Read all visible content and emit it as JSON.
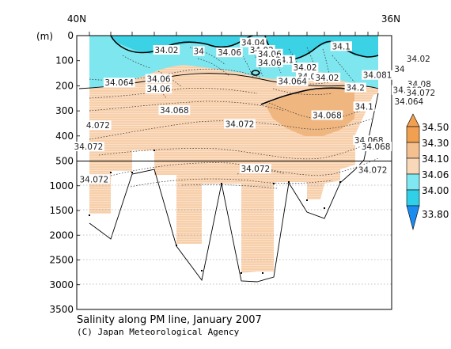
{
  "chart_data": {
    "type": "contour",
    "title": "Salinity along PM line, January 2007",
    "credit": "(C) Japan Meteorological Agency",
    "x_axis": {
      "labels": [
        "40N",
        "36N"
      ],
      "range": [
        40,
        36
      ]
    },
    "y_axis": {
      "unit": "(m)",
      "upper_ticks": [
        0,
        100,
        200,
        300,
        400,
        500
      ],
      "lower_ticks": [
        500,
        1000,
        1500,
        2000,
        2500,
        3000,
        3500
      ],
      "break_depth": 500,
      "range": [
        0,
        3500
      ]
    },
    "colorbar": {
      "levels": [
        "34.50",
        "34.30",
        "34.10",
        "34.06",
        "34.00",
        "33.80"
      ],
      "colors": [
        "#f0a050",
        "#f4c090",
        "#f8d8b8",
        "#80e8f0",
        "#30d0e8",
        "#1c8cf0"
      ]
    },
    "contour_labels": [
      {
        "text": "34.02",
        "lat": 38.86,
        "depth": 60
      },
      {
        "text": "34",
        "lat": 38.45,
        "depth": 65
      },
      {
        "text": "34.06",
        "lat": 38.06,
        "depth": 70
      },
      {
        "text": "34.04",
        "lat": 37.76,
        "depth": 30
      },
      {
        "text": "34.02",
        "lat": 37.65,
        "depth": 60
      },
      {
        "text": "34.06",
        "lat": 37.55,
        "depth": 75
      },
      {
        "text": "34.1",
        "lat": 37.36,
        "depth": 100
      },
      {
        "text": "34.06",
        "lat": 37.55,
        "depth": 110
      },
      {
        "text": "34.02",
        "lat": 37.1,
        "depth": 130
      },
      {
        "text": "34.0",
        "lat": 37.08,
        "depth": 165
      },
      {
        "text": "34.02",
        "lat": 36.82,
        "depth": 170
      },
      {
        "text": "34.1",
        "lat": 36.64,
        "depth": 45
      },
      {
        "text": "34.064",
        "lat": 39.46,
        "depth": 190
      },
      {
        "text": "34.06",
        "lat": 38.96,
        "depth": 175
      },
      {
        "text": "34.06",
        "lat": 38.96,
        "depth": 215
      },
      {
        "text": "34.064",
        "lat": 37.26,
        "depth": 185
      },
      {
        "text": "34.081",
        "lat": 36.18,
        "depth": 160
      },
      {
        "text": "34",
        "lat": 35.9,
        "depth": 135
      },
      {
        "text": "34.02",
        "lat": 35.66,
        "depth": 95
      },
      {
        "text": "34.2",
        "lat": 36.46,
        "depth": 210
      },
      {
        "text": "34.08",
        "lat": 35.65,
        "depth": 195
      },
      {
        "text": "34.068",
        "lat": 35.8,
        "depth": 220
      },
      {
        "text": "34.072",
        "lat": 35.63,
        "depth": 230
      },
      {
        "text": "34.064",
        "lat": 35.78,
        "depth": 265
      },
      {
        "text": "34.1",
        "lat": 36.35,
        "depth": 285
      },
      {
        "text": "34.068",
        "lat": 38.76,
        "depth": 300
      },
      {
        "text": "34.068",
        "lat": 36.82,
        "depth": 320
      },
      {
        "text": "4.072",
        "lat": 39.73,
        "depth": 360
      },
      {
        "text": "34.072",
        "lat": 37.93,
        "depth": 355
      },
      {
        "text": "34.072",
        "lat": 39.85,
        "depth": 445
      },
      {
        "text": "34.068",
        "lat": 36.29,
        "depth": 420
      },
      {
        "text": "34.068",
        "lat": 36.2,
        "depth": 445
      },
      {
        "text": "34.072",
        "lat": 37.73,
        "depth": 670
      },
      {
        "text": "34.072",
        "lat": 36.24,
        "depth": 690
      },
      {
        "text": "34.072",
        "lat": 39.78,
        "depth": 880
      }
    ]
  }
}
